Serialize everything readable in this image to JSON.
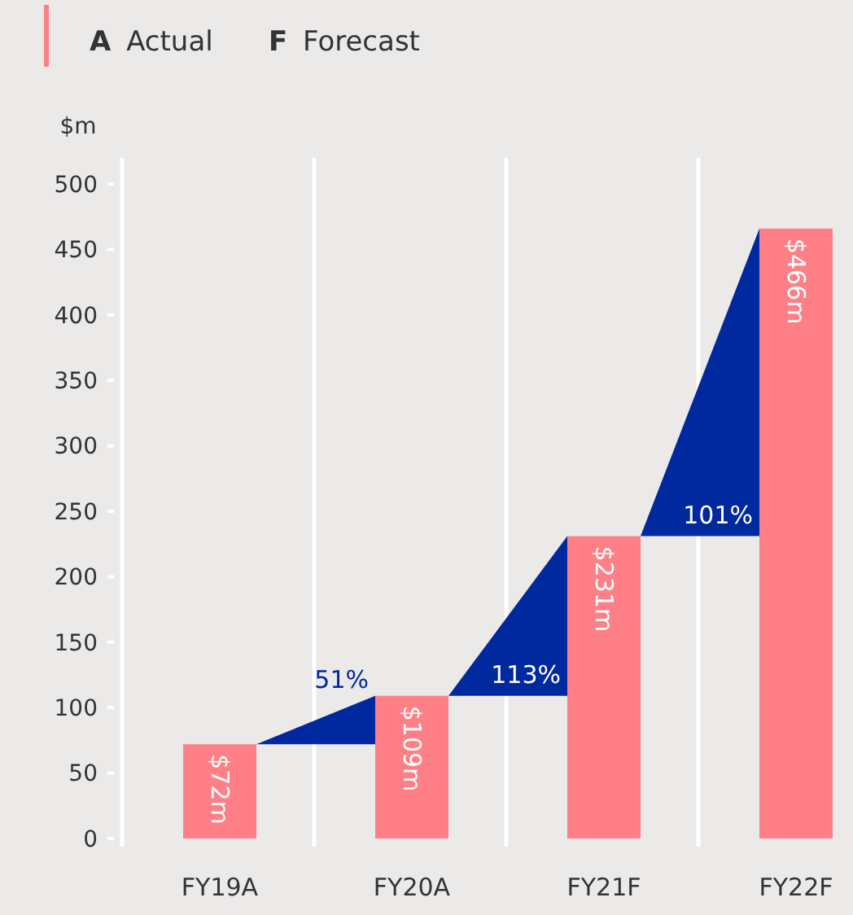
{
  "chart_data": {
    "type": "bar",
    "ylabel": "$m",
    "categories": [
      "FY19A",
      "FY20A",
      "FY21F",
      "FY22F"
    ],
    "values": [
      72,
      109,
      231,
      466
    ],
    "color": "#ff7f87",
    "value_labels": [
      "$72m",
      "$109m",
      "$231m",
      "$466m"
    ],
    "ylim": [
      0,
      520
    ],
    "yticks": [
      0,
      50,
      100,
      150,
      200,
      250,
      300,
      350,
      400,
      450,
      500
    ],
    "grid": "x",
    "annotations": [
      "A Actual",
      "F Forecast",
      "51%",
      "113%",
      "101%"
    ]
  }
}
